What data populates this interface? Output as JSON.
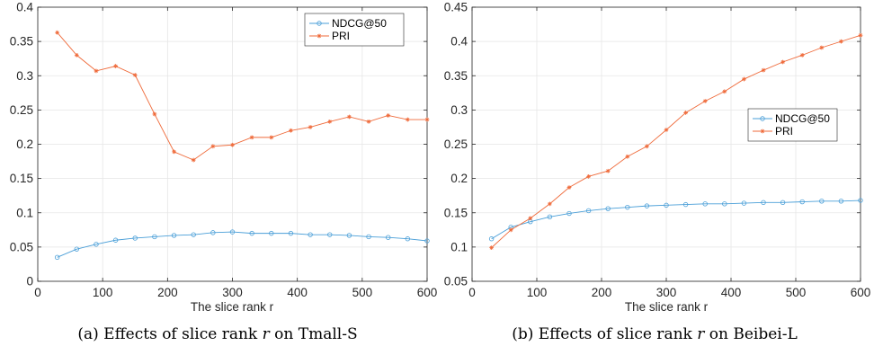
{
  "chart_data": [
    {
      "type": "line",
      "caption": {
        "prefix": "(a) Effects of slice rank ",
        "var": "r",
        "suffix": " on Tmall-S"
      },
      "xlabel": "The slice rank r",
      "ylabel": "",
      "xlim": [
        0,
        600
      ],
      "ylim": [
        0,
        0.4
      ],
      "xticks": [
        0,
        100,
        200,
        300,
        400,
        500,
        600
      ],
      "yticks": [
        0,
        0.05,
        0.1,
        0.15,
        0.2,
        0.25,
        0.3,
        0.35,
        0.4
      ],
      "ytick_labels": [
        "0",
        "0.05",
        "0.1",
        "0.15",
        "0.2",
        "0.25",
        "0.3",
        "0.35",
        "0.4"
      ],
      "grid": true,
      "legend_position": "top-right",
      "x": [
        30,
        60,
        90,
        120,
        150,
        180,
        210,
        240,
        270,
        300,
        330,
        360,
        390,
        420,
        450,
        480,
        510,
        540,
        570,
        600
      ],
      "series": [
        {
          "name": "NDCG@50",
          "color": "#4a9fd8",
          "marker": "circle",
          "values": [
            0.035,
            0.047,
            0.054,
            0.06,
            0.063,
            0.065,
            0.067,
            0.068,
            0.071,
            0.072,
            0.07,
            0.07,
            0.07,
            0.068,
            0.068,
            0.067,
            0.065,
            0.064,
            0.062,
            0.059
          ]
        },
        {
          "name": "PRI",
          "color": "#ef6a3a",
          "marker": "star",
          "values": [
            0.363,
            0.33,
            0.307,
            0.314,
            0.301,
            0.244,
            0.189,
            0.177,
            0.197,
            0.199,
            0.21,
            0.21,
            0.22,
            0.225,
            0.233,
            0.24,
            0.233,
            0.242,
            0.236,
            0.236
          ]
        }
      ]
    },
    {
      "type": "line",
      "caption": {
        "prefix": "(b) Effects of slice rank ",
        "var": "r",
        "suffix": " on Beibei-L"
      },
      "xlabel": "The slice rank r",
      "ylabel": "",
      "xlim": [
        0,
        600
      ],
      "ylim": [
        0.05,
        0.45
      ],
      "xticks": [
        0,
        100,
        200,
        300,
        400,
        500,
        600
      ],
      "yticks": [
        0.05,
        0.1,
        0.15,
        0.2,
        0.25,
        0.3,
        0.35,
        0.4,
        0.45
      ],
      "ytick_labels": [
        "0.05",
        "0.1",
        "0.15",
        "0.2",
        "0.25",
        "0.3",
        "0.35",
        "0.4",
        "0.45"
      ],
      "grid": true,
      "legend_position": "right",
      "x": [
        30,
        60,
        90,
        120,
        150,
        180,
        210,
        240,
        270,
        300,
        330,
        360,
        390,
        420,
        450,
        480,
        510,
        540,
        570,
        600
      ],
      "series": [
        {
          "name": "NDCG@50",
          "color": "#4a9fd8",
          "marker": "circle",
          "values": [
            0.112,
            0.129,
            0.137,
            0.144,
            0.149,
            0.153,
            0.156,
            0.158,
            0.16,
            0.161,
            0.162,
            0.163,
            0.163,
            0.164,
            0.165,
            0.165,
            0.166,
            0.167,
            0.167,
            0.168
          ]
        },
        {
          "name": "PRI",
          "color": "#ef6a3a",
          "marker": "star",
          "values": [
            0.099,
            0.125,
            0.142,
            0.163,
            0.187,
            0.203,
            0.211,
            0.232,
            0.247,
            0.271,
            0.296,
            0.313,
            0.327,
            0.345,
            0.358,
            0.37,
            0.38,
            0.391,
            0.4,
            0.409
          ]
        }
      ]
    }
  ]
}
